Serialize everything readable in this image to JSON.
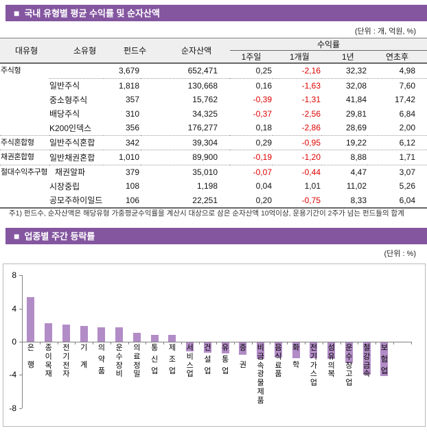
{
  "section1": {
    "bullet": "■",
    "title": "국내 유형별 평균 수익률 및 순자산액",
    "unit_note": "(단위 : 개, 억원, %)",
    "footnote": "주1) 펀드수, 순자산액은 해당유형 가중평균수익률을 계산시 대상으로 삼은 순자산액 10억이상, 운용기간이 2주가 넘는 펀드들의 합계"
  },
  "table": {
    "headers": {
      "col1": "대유형",
      "col2": "소유형",
      "col3": "펀드수",
      "col4": "순자산액",
      "returns_group": "수익률",
      "sub": [
        "1주일",
        "1개월",
        "1년",
        "연초후"
      ]
    },
    "rows": [
      {
        "group": "주식형",
        "rowspan": 5,
        "sub": "",
        "values": [
          "3,679",
          "652,471",
          "0,25",
          "-2,16",
          "32,32",
          "4,98"
        ]
      },
      {
        "sub": "일반주식",
        "values": [
          "1,818",
          "130,668",
          "0,16",
          "-1,63",
          "32,08",
          "7,60"
        ]
      },
      {
        "sub": "중소형주식",
        "values": [
          "357",
          "15,762",
          "-0,39",
          "-1,31",
          "41,84",
          "17,42"
        ]
      },
      {
        "sub": "배당주식",
        "values": [
          "310",
          "34,325",
          "-0,37",
          "-2,56",
          "29,81",
          "6,84"
        ]
      },
      {
        "sub": "K200인덱스",
        "values": [
          "356",
          "176,277",
          "0,18",
          "-2,86",
          "28,69",
          "2,00"
        ]
      },
      {
        "group": "주식혼합형",
        "rowspan": 1,
        "sub": "일반주식혼합",
        "values": [
          "342",
          "39,304",
          "0,29",
          "-0,95",
          "19,22",
          "6,12"
        ]
      },
      {
        "group": "채권혼합형",
        "rowspan": 1,
        "sub": "일반채권혼합",
        "values": [
          "1,010",
          "89,900",
          "-0,19",
          "-1,20",
          "8,88",
          "1,71"
        ]
      },
      {
        "group": "절대수익추구형",
        "rowspan": 3,
        "sub": "채권알파",
        "sub_indent": true,
        "values": [
          "379",
          "35,010",
          "-0,07",
          "-0,44",
          "4,47",
          "3,07"
        ]
      },
      {
        "sub": "시장중립",
        "values": [
          "108",
          "1,198",
          "0,04",
          "1,01",
          "11,02",
          "5,26"
        ]
      },
      {
        "sub": "공모주하이일드",
        "values": [
          "106",
          "22,251",
          "0,20",
          "-0,75",
          "8,33",
          "6,04"
        ]
      }
    ],
    "separators": {
      "after_row0_cols2to8": "dotted",
      "full_dotted_after_rows": [
        4,
        5,
        6
      ]
    }
  },
  "section2": {
    "bullet": "■",
    "title": "업종별 주간 등락률",
    "unit_note": "(단위 : %)"
  },
  "chart_data": {
    "type": "bar",
    "title": "업종별 주간 등락률",
    "unit": "%",
    "categories": [
      "은행",
      "종이목재",
      "전기전자",
      "기계",
      "의약품",
      "운수장비",
      "의료정밀",
      "통신업",
      "제조업",
      "서비스업",
      "건설업",
      "유통업",
      "증권",
      "비금속광물제품",
      "음식료품",
      "화학",
      "전기가스업",
      "섬유의복",
      "운수창고업",
      "철강금속",
      "보험업"
    ],
    "values": [
      5.4,
      2.25,
      2.1,
      1.9,
      1.75,
      1.7,
      1.1,
      0.85,
      0.8,
      -1.1,
      -1.25,
      -1.35,
      -1.5,
      -1.95,
      -1.85,
      -1.9,
      -1.9,
      -2.0,
      -2.5,
      -3.9,
      -4.1
    ],
    "ylim": [
      -8,
      8
    ],
    "yticks": [
      8,
      4,
      0,
      -4,
      -8
    ],
    "bar_color": "#B28CC6",
    "grid": false,
    "legend": false
  },
  "colors": {
    "accent_purple": "#8456A0",
    "bar_purple": "#B28CC6",
    "negative_red": "#DD0000",
    "header_bg": "#EFEFEF"
  }
}
